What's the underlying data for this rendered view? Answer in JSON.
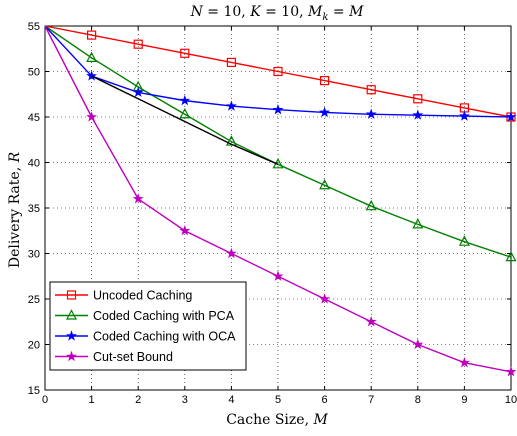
{
  "chart_data": {
    "type": "line",
    "title": "N = 10, K = 10, M_k = M",
    "xlabel": "Cache Size, M",
    "ylabel": "Delivery Rate, R",
    "xlim": [
      0,
      10
    ],
    "ylim": [
      15,
      55
    ],
    "xticks": [
      0,
      1,
      2,
      3,
      4,
      5,
      6,
      7,
      8,
      9,
      10
    ],
    "yticks": [
      15,
      20,
      25,
      30,
      35,
      40,
      45,
      50,
      55
    ],
    "grid": true,
    "legend_position": "bottom-left",
    "series": [
      {
        "name": "Uncoded Caching",
        "color": "#ff0000",
        "marker": "square",
        "x": [
          0,
          1,
          2,
          3,
          4,
          5,
          6,
          7,
          8,
          9,
          10
        ],
        "values": [
          55,
          54,
          53,
          52,
          51,
          50,
          49,
          48,
          47,
          46,
          45
        ]
      },
      {
        "name": "Coded Caching with PCA",
        "color": "#008000",
        "marker": "triangle",
        "x": [
          0,
          1,
          2,
          3,
          4,
          5,
          6,
          7,
          8,
          9,
          10
        ],
        "values": [
          55,
          51.5,
          48.3,
          45.3,
          42.3,
          39.8,
          37.5,
          35.2,
          33.2,
          31.3,
          29.6
        ]
      },
      {
        "name": "Coded Caching with OCA",
        "color": "#0000ff",
        "marker": "star",
        "x": [
          0,
          1,
          2,
          3,
          4,
          5,
          6,
          7,
          8,
          9,
          10
        ],
        "values": [
          55,
          49.5,
          47.7,
          46.8,
          46.2,
          45.8,
          45.5,
          45.3,
          45.2,
          45.1,
          45.0
        ]
      },
      {
        "name": "Cut-set Bound",
        "color": "#bf00bf",
        "marker": "star",
        "x": [
          0,
          1,
          2,
          3,
          4,
          5,
          6,
          7,
          8,
          9,
          10
        ],
        "values": [
          55,
          45,
          36,
          32.5,
          30,
          27.5,
          25,
          22.5,
          20,
          18,
          17
        ]
      },
      {
        "name": "",
        "color": "#000000",
        "marker": "none",
        "x": [
          1,
          2,
          3,
          4,
          5
        ],
        "values": [
          49.5,
          47.0,
          44.5,
          42.0,
          39.8
        ]
      }
    ]
  }
}
